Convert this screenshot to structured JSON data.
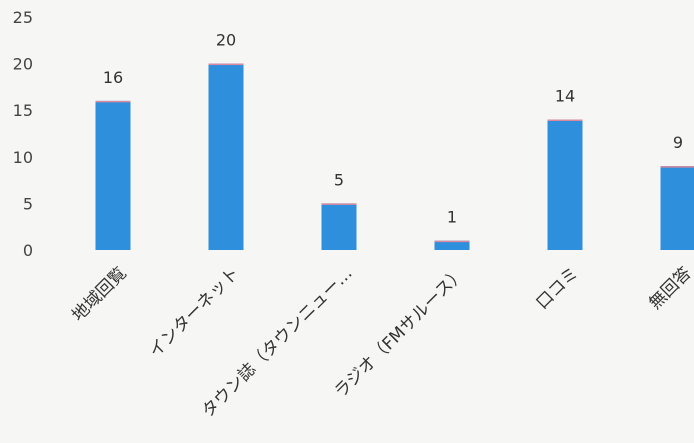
{
  "chart_data": {
    "type": "bar",
    "categories": [
      "地域回覧",
      "インターネット",
      "タウン誌（タウンニュー…",
      "ラジオ（FMサルース）",
      "口コミ",
      "無回答"
    ],
    "values": [
      16,
      20,
      5,
      1,
      14,
      9
    ],
    "title": "",
    "xlabel": "",
    "ylabel": "",
    "ylim": [
      0,
      25
    ],
    "yticks": [
      0,
      5,
      10,
      15,
      20,
      25
    ],
    "grid": false,
    "legend": "none",
    "bar_color": "#2e8fdc",
    "bar_top_color": "#d88aa0"
  }
}
